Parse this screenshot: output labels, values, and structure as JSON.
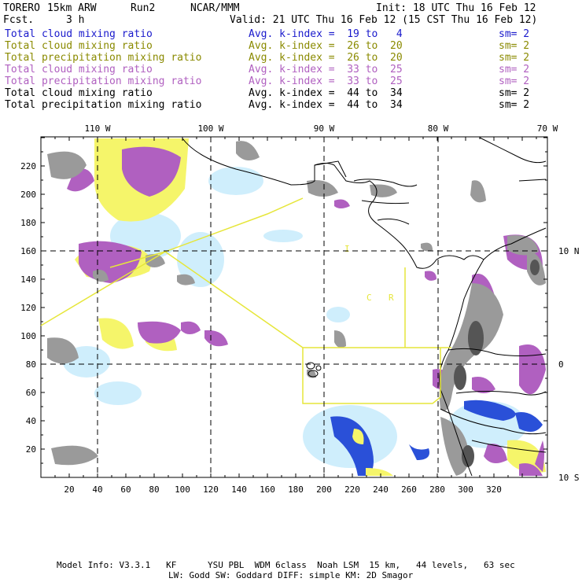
{
  "header": {
    "model": "TORERO",
    "resolution": "15km ARW",
    "run": "Run2",
    "org": "NCAR/MMM",
    "init": "Init: 18 UTC Thu 16 Feb 12",
    "fcst_label": "Fcst.",
    "fcst_value": "3 h",
    "valid": "Valid: 21 UTC Thu 16 Feb 12 (15 CST Thu 16 Feb 12)"
  },
  "legend": [
    {
      "name": "Total cloud mixing ratio",
      "kindex": "Avg. k-index =  19 to   4",
      "sm": "sm= 2",
      "color": "#1a1acc"
    },
    {
      "name": "Total cloud mixing ratio",
      "kindex": "Avg. k-index =  26 to  20",
      "sm": "sm= 2",
      "color": "#8a8a00"
    },
    {
      "name": "Total precipitation mixing ratio",
      "kindex": "Avg. k-index =  26 to  20",
      "sm": "sm= 2",
      "color": "#8a8a00"
    },
    {
      "name": "Total cloud mixing ratio",
      "kindex": "Avg. k-index =  33 to  25",
      "sm": "sm= 2",
      "color": "#b060c0"
    },
    {
      "name": "Total precipitation mixing ratio",
      "kindex": "Avg. k-index =  33 to  25",
      "sm": "sm= 2",
      "color": "#b060c0"
    },
    {
      "name": "Total cloud mixing ratio",
      "kindex": "Avg. k-index =  44 to  34",
      "sm": "sm= 2",
      "color": "#000000"
    },
    {
      "name": "Total precipitation mixing ratio",
      "kindex": "Avg. k-index =  44 to  34",
      "sm": "sm= 2",
      "color": "#000000"
    }
  ],
  "axes": {
    "top_lon_labels": [
      "110 W",
      "100 W",
      "90 W",
      "80 W",
      "70 W"
    ],
    "right_lat_labels": [
      "10 N",
      "0",
      "10 S"
    ],
    "left_ticks": [
      "220",
      "200",
      "180",
      "160",
      "140",
      "120",
      "100",
      "80",
      "60",
      "40",
      "20"
    ],
    "bottom_ticks": [
      "20",
      "40",
      "60",
      "80",
      "100",
      "120",
      "140",
      "160",
      "180",
      "200",
      "220",
      "240",
      "260",
      "280",
      "300",
      "320"
    ]
  },
  "footer": {
    "line1": "Model Info: V3.3.1   KF      YSU PBL  WDM 6class  Noah LSM  15 km,   44 levels,   63 sec",
    "line2": "LW: Godd SW: Goddard DIFF: simple KM: 2D Smagor"
  },
  "colors": {
    "gray_cloud": "#9a9a9a",
    "yellow_precip": "#f5f56a",
    "purple_cloud": "#b060c0",
    "lightblue": "#cfeefc",
    "blue": "#1a40d0",
    "domain_box": "#e6e63a"
  }
}
